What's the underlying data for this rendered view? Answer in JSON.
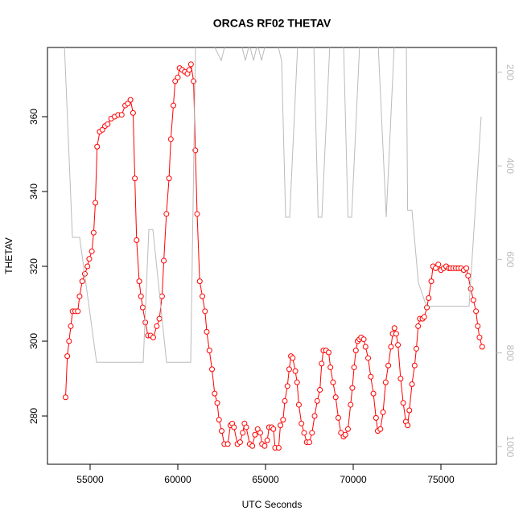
{
  "chart_data": {
    "type": "line",
    "title": "ORCAS RF02 THETAV",
    "x_label": "UTC Seconds",
    "y_label": "THETAV",
    "xlim": [
      52569,
      78165
    ],
    "xticks": [
      55000,
      60000,
      65000,
      70000,
      75000
    ],
    "ylim": [
      267.1,
      378.5
    ],
    "yticks": [
      280,
      300,
      320,
      340,
      360
    ],
    "y2lim": [
      147,
      1038
    ],
    "y2ticks": [
      200,
      400,
      600,
      800,
      1000
    ],
    "y2_reversed": true,
    "series": [
      {
        "name": "THETAV",
        "color": "#ff0000",
        "markers": true,
        "x": [
          53600,
          53700,
          53800,
          53900,
          54000,
          54150,
          54300,
          54400,
          54550,
          54700,
          54850,
          54950,
          55100,
          55200,
          55300,
          55400,
          55550,
          55700,
          55850,
          56000,
          56200,
          56400,
          56600,
          56800,
          57000,
          57150,
          57300,
          57450,
          57550,
          57650,
          57800,
          57900,
          58000,
          58150,
          58300,
          58450,
          58600,
          58800,
          58950,
          59100,
          59200,
          59350,
          59500,
          59600,
          59750,
          59850,
          60000,
          60100,
          60250,
          60400,
          60550,
          60650,
          60750,
          60900,
          61000,
          61100,
          61250,
          61400,
          61550,
          61650,
          61800,
          61950,
          62100,
          62250,
          62350,
          62500,
          62650,
          62850,
          63000,
          63100,
          63200,
          63400,
          63550,
          63700,
          63800,
          63900,
          64100,
          64250,
          64400,
          64550,
          64700,
          64800,
          64950,
          65100,
          65200,
          65350,
          65450,
          65550,
          65750,
          65850,
          66000,
          66100,
          66250,
          66350,
          66450,
          66550,
          66700,
          66800,
          66900,
          67050,
          67200,
          67350,
          67500,
          67650,
          67800,
          67950,
          68100,
          68200,
          68300,
          68450,
          68600,
          68700,
          68850,
          69000,
          69150,
          69300,
          69450,
          69550,
          69700,
          69850,
          69950,
          70050,
          70150,
          70250,
          70350,
          70450,
          70600,
          70700,
          70850,
          71000,
          71150,
          71300,
          71400,
          71550,
          71700,
          71850,
          72000,
          72150,
          72250,
          72350,
          72450,
          72550,
          72700,
          72850,
          73000,
          73100,
          73200,
          73350,
          73500,
          73600,
          73700,
          73800,
          73950,
          74050,
          74200,
          74300,
          74450,
          74550,
          74700,
          74850,
          75000,
          75150,
          75300,
          75450,
          75550,
          75700,
          75850,
          76000,
          76150,
          76300,
          76450,
          76550,
          76700,
          76850,
          77000,
          77100,
          77200,
          77350
        ],
        "values": [
          285,
          296,
          300,
          304,
          308,
          308,
          308,
          312,
          316,
          318,
          320,
          322,
          324,
          329,
          337,
          352,
          356,
          356.5,
          357.5,
          358,
          359.5,
          360,
          360.5,
          360.5,
          363,
          363.5,
          364.5,
          361,
          343.5,
          327,
          316,
          312,
          309,
          305,
          301.5,
          301.5,
          301,
          304,
          306,
          312,
          321.5,
          334,
          343.5,
          354,
          363,
          369.5,
          370.5,
          373,
          372.5,
          372,
          371.5,
          372.5,
          374,
          369.5,
          351,
          334,
          316,
          312,
          308,
          302.5,
          297.5,
          292.5,
          286,
          283.5,
          279,
          276,
          272.5,
          272.5,
          277.5,
          278,
          277,
          272.5,
          273,
          275.5,
          278,
          277,
          272.5,
          272,
          275,
          276.5,
          275.5,
          272.5,
          272,
          273.5,
          277,
          277,
          276.5,
          271.5,
          271.5,
          277.5,
          279,
          284,
          288,
          292.5,
          296,
          295.5,
          292,
          289,
          283,
          278,
          275.5,
          273,
          273,
          275.5,
          280,
          284,
          287,
          294,
          297.5,
          297.5,
          297,
          293,
          289,
          285,
          279.5,
          275.5,
          274.5,
          275,
          276.5,
          283,
          287.5,
          293,
          297.5,
          300,
          300.5,
          301,
          300.5,
          298.5,
          295.5,
          290.5,
          286,
          279.5,
          276,
          276.5,
          281,
          289,
          293.5,
          298.5,
          302,
          303.5,
          302,
          299,
          290,
          283.5,
          278.5,
          277.5,
          281.5,
          288.5,
          293.5,
          298,
          304,
          306,
          306,
          306.5,
          309,
          311.5,
          316,
          320,
          319.5,
          320.5,
          319,
          319.5,
          320,
          319.5,
          319.5,
          319.5,
          319.5,
          319.5,
          319.5,
          319,
          319.5,
          317.5,
          314,
          311,
          308,
          304,
          301,
          298.5
        ]
      },
      {
        "color": "#bbbbbb",
        "axis": "y2",
        "markers": false,
        "x": [
          53532,
          53991,
          54404,
          55367,
          58028,
          58349,
          58578,
          59358,
          60734,
          61009,
          62018,
          62477,
          62706,
          63624,
          63850,
          64082,
          64312,
          64541,
          64771,
          65000,
          65688,
          65917,
          66147,
          66376,
          66835,
          67750,
          68000,
          68211,
          68670,
          69450,
          69700,
          69908,
          70367,
          71422,
          71881,
          72340,
          73028,
          73100,
          73349,
          73716,
          74175,
          76606,
          77294
        ],
        "values": [
          140,
          553,
          553,
          820,
          820,
          536,
          536,
          820,
          820,
          140,
          140,
          175,
          140,
          140,
          175,
          140,
          175,
          140,
          175,
          140,
          140,
          175,
          510,
          510,
          140,
          140,
          510,
          510,
          140,
          140,
          510,
          510,
          140,
          140,
          510,
          140,
          140,
          495,
          495,
          650,
          700,
          700,
          295
        ]
      }
    ]
  }
}
